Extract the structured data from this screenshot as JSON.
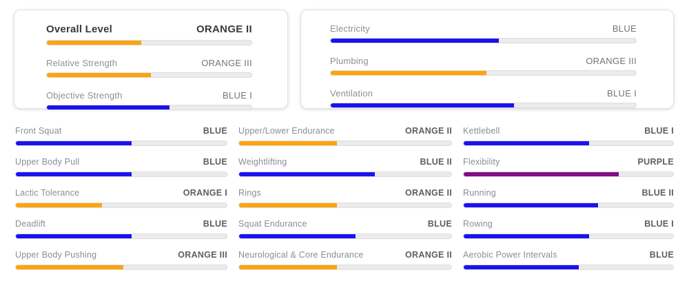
{
  "colors": {
    "orange": "#FCA40D",
    "blue": "#1B12F0",
    "purple": "#840B84",
    "track": "#EBEBEB"
  },
  "cards": [
    {
      "rows": [
        {
          "label": "Overall Level",
          "value": "ORANGE II",
          "color": "orange",
          "percent": 46
        },
        {
          "label": "Relative Strength",
          "value": "ORANGE III",
          "color": "orange",
          "percent": 51
        },
        {
          "label": "Objective Strength",
          "value": "BLUE I",
          "color": "blue",
          "percent": 60
        }
      ]
    },
    {
      "rows": [
        {
          "label": "Electricity",
          "value": "BLUE",
          "color": "blue",
          "percent": 55
        },
        {
          "label": "Plumbing",
          "value": "ORANGE III",
          "color": "orange",
          "percent": 51
        },
        {
          "label": "Ventilation",
          "value": "BLUE I",
          "color": "blue",
          "percent": 60
        }
      ]
    }
  ],
  "grid": {
    "columns": [
      {
        "items": [
          {
            "label": "Front Squat",
            "value": "BLUE",
            "color": "blue",
            "percent": 55
          },
          {
            "label": "Upper Body Pull",
            "value": "BLUE",
            "color": "blue",
            "percent": 55
          },
          {
            "label": "Lactic Tolerance",
            "value": "ORANGE I",
            "color": "orange",
            "percent": 41
          },
          {
            "label": "Deadlift",
            "value": "BLUE",
            "color": "blue",
            "percent": 55
          },
          {
            "label": "Upper Body Pushing",
            "value": "ORANGE III",
            "color": "orange",
            "percent": 51
          }
        ]
      },
      {
        "items": [
          {
            "label": "Upper/Lower Endurance",
            "value": "ORANGE II",
            "color": "orange",
            "percent": 46
          },
          {
            "label": "Weightlifting",
            "value": "BLUE II",
            "color": "blue",
            "percent": 64
          },
          {
            "label": "Rings",
            "value": "ORANGE II",
            "color": "orange",
            "percent": 46
          },
          {
            "label": "Squat Endurance",
            "value": "BLUE",
            "color": "blue",
            "percent": 55
          },
          {
            "label": "Neurological & Core Endurance",
            "value": "ORANGE II",
            "color": "orange",
            "percent": 46
          }
        ]
      },
      {
        "items": [
          {
            "label": "Kettlebell",
            "value": "BLUE I",
            "color": "blue",
            "percent": 60
          },
          {
            "label": "Flexibility",
            "value": "PURPLE",
            "color": "purple",
            "percent": 74
          },
          {
            "label": "Running",
            "value": "BLUE II",
            "color": "blue",
            "percent": 64
          },
          {
            "label": "Rowing",
            "value": "BLUE I",
            "color": "blue",
            "percent": 60
          },
          {
            "label": "Aerobic Power Intervals",
            "value": "BLUE",
            "color": "blue",
            "percent": 55
          }
        ]
      }
    ]
  }
}
